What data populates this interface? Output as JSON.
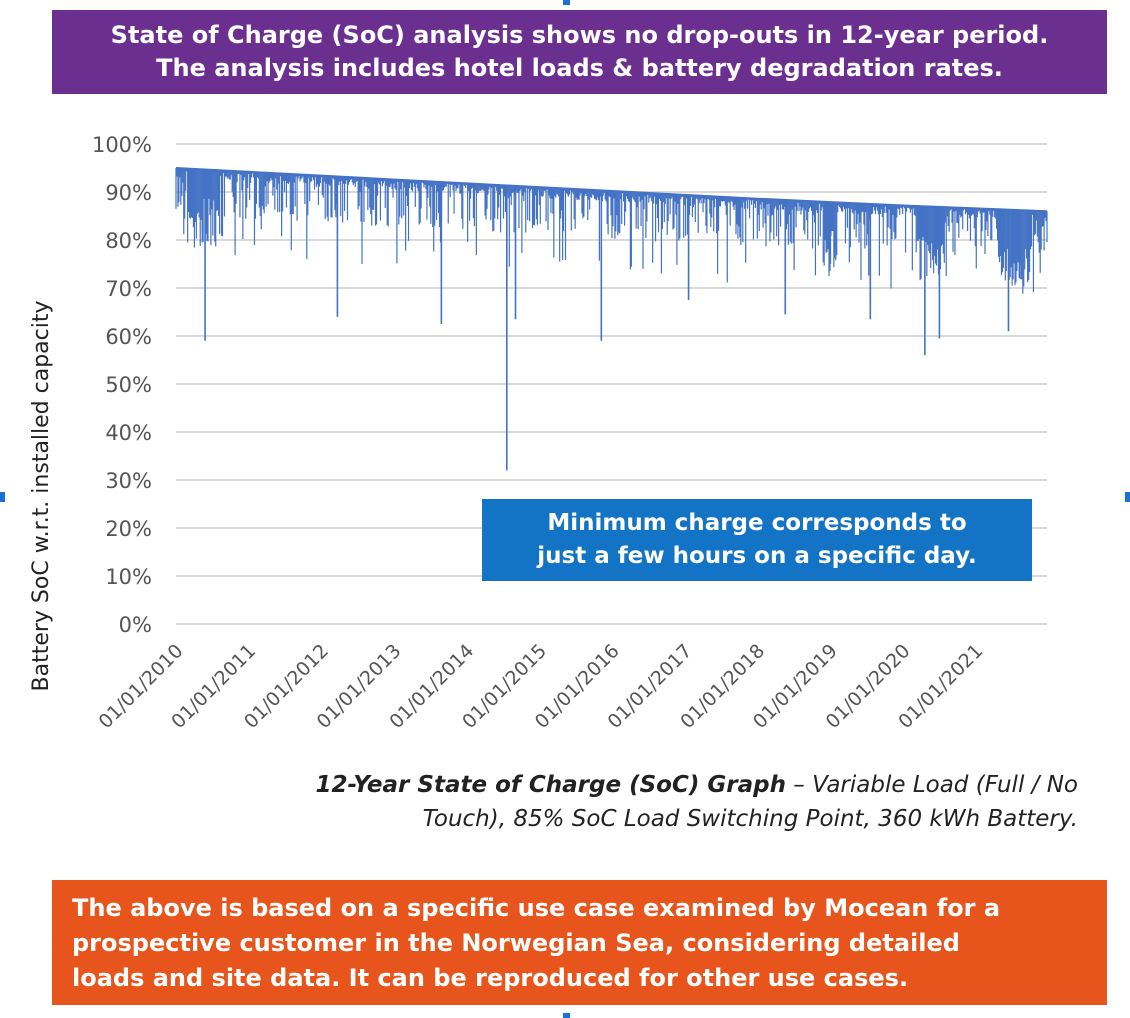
{
  "header_banner": {
    "line1": "State of Charge (SoC) analysis shows no drop-outs in 12-year period.",
    "line2": "The analysis includes hotel loads & battery degradation rates.",
    "color": "#6b2f8f"
  },
  "chart_data": {
    "type": "bar",
    "title": "12-Year State of Charge (SoC) Graph",
    "ylabel": "Battery SoC w.r.t. installed capacity",
    "xlabel": "",
    "ylim": [
      0,
      100
    ],
    "ytick_labels": [
      "0%",
      "10%",
      "20%",
      "30%",
      "40%",
      "50%",
      "60%",
      "70%",
      "80%",
      "90%",
      "100%"
    ],
    "xtick_labels": [
      "01/01/2010",
      "01/01/2011",
      "01/01/2012",
      "01/01/2013",
      "01/01/2014",
      "01/01/2015",
      "01/01/2016",
      "01/01/2017",
      "01/01/2018",
      "01/01/2019",
      "01/01/2020",
      "01/01/2021"
    ],
    "x_start_year": 2010,
    "x_end_year": 2021.98,
    "series": [
      {
        "name": "Battery SoC",
        "color": "#4472c4"
      }
    ],
    "upper_envelope": [
      [
        2010.0,
        95.0
      ],
      [
        2012.0,
        93.4
      ],
      [
        2014.0,
        91.8
      ],
      [
        2016.0,
        90.2
      ],
      [
        2018.0,
        88.6
      ],
      [
        2020.0,
        87.2
      ],
      [
        2021.98,
        86.0
      ]
    ],
    "notable_dips": [
      {
        "x": 2010.4,
        "min": 59
      },
      {
        "x": 2012.22,
        "min": 64
      },
      {
        "x": 2013.65,
        "min": 62.5
      },
      {
        "x": 2014.55,
        "min": 32
      },
      {
        "x": 2014.67,
        "min": 63.5
      },
      {
        "x": 2015.85,
        "min": 59
      },
      {
        "x": 2017.05,
        "min": 67.5
      },
      {
        "x": 2018.38,
        "min": 64.5
      },
      {
        "x": 2019.0,
        "min": 75
      },
      {
        "x": 2019.55,
        "min": 63.5
      },
      {
        "x": 2020.3,
        "min": 56
      },
      {
        "x": 2020.5,
        "min": 59.5
      },
      {
        "x": 2021.45,
        "min": 61
      },
      {
        "x": 2021.6,
        "min": 72
      }
    ],
    "annotation": "Minimum charge corresponds to just a few hours on a specific day."
  },
  "callout": {
    "line1": "Minimum charge corresponds to",
    "line2": "just a few hours on a specific day.",
    "color": "#1373c4"
  },
  "caption": {
    "bold": "12-Year State of Charge (SoC) Graph",
    "rest_line1": " – Variable Load (Full / No",
    "line2": "Touch), 85% SoC Load Switching Point, 360 kWh Battery."
  },
  "footer_banner": {
    "line1": "The above is based on a specific use case examined by Mocean for a",
    "line2": "prospective customer in the Norwegian Sea, considering detailed",
    "line3": "loads and site data. It can be reproduced for other use cases.",
    "color": "#e7551c"
  }
}
